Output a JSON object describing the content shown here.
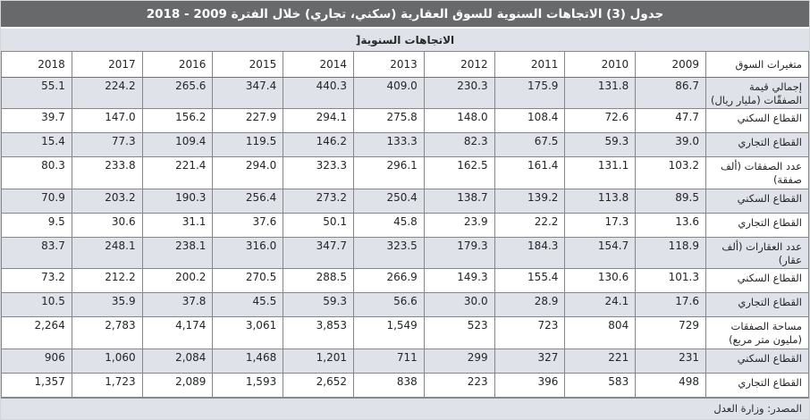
{
  "title": "جدول (3) الاتجاهات السنوية للسوق العقارية (سكني، تجاري) خلال الفترة 2009 - 2018",
  "subtitle_bracket": "]",
  "subtitle": "الاتجاهات السنوية",
  "source": "المصدر: وزارة العدل",
  "colors": {
    "title_bar_bg": "#68696b",
    "title_bar_text": "#ffffff",
    "shaded_row_bg": "#dfe3e9",
    "border": "#84878a"
  },
  "table": {
    "header": [
      "متغيرات السوق",
      "2009",
      "2010",
      "2011",
      "2012",
      "2013",
      "2014",
      "2015",
      "2016",
      "2017",
      "2018"
    ],
    "rows": [
      {
        "label": "إجمالي قيمة الصفقّات (مليار ريال)",
        "values": [
          "86.7",
          "131.8",
          "175.9",
          "230.3",
          "409.0",
          "440.3",
          "347.4",
          "265.6",
          "224.2",
          "55.1"
        ]
      },
      {
        "label": "القطاع السكني",
        "values": [
          "47.7",
          "72.6",
          "108.4",
          "148.0",
          "275.8",
          "294.1",
          "227.9",
          "156.2",
          "147.0",
          "39.7"
        ]
      },
      {
        "label": "القطاع التجاري",
        "values": [
          "39.0",
          "59.3",
          "67.5",
          "82.3",
          "133.3",
          "146.2",
          "119.5",
          "109.4",
          "77.3",
          "15.4"
        ]
      },
      {
        "label": "عدد الصفقات (ألف صفقة)",
        "values": [
          "103.2",
          "131.1",
          "161.4",
          "162.5",
          "296.1",
          "323.3",
          "294.0",
          "221.4",
          "233.8",
          "80.3"
        ]
      },
      {
        "label": "القطاع السكني",
        "values": [
          "89.5",
          "113.8",
          "139.2",
          "138.7",
          "250.4",
          "273.2",
          "256.4",
          "190.3",
          "203.2",
          "70.9"
        ]
      },
      {
        "label": "القطاع التجاري",
        "values": [
          "13.6",
          "17.3",
          "22.2",
          "23.9",
          "45.8",
          "50.1",
          "37.6",
          "31.1",
          "30.6",
          "9.5"
        ]
      },
      {
        "label": "عدد العقارات (ألف عقار)",
        "values": [
          "118.9",
          "154.7",
          "184.3",
          "179.3",
          "323.5",
          "347.7",
          "316.0",
          "238.1",
          "248.1",
          "83.7"
        ]
      },
      {
        "label": "القطاع السكني",
        "values": [
          "101.3",
          "130.6",
          "155.4",
          "149.3",
          "266.9",
          "288.5",
          "270.5",
          "200.2",
          "212.2",
          "73.2"
        ]
      },
      {
        "label": "القطاع التجاري",
        "values": [
          "17.6",
          "24.1",
          "28.9",
          "30.0",
          "56.6",
          "59.3",
          "45.5",
          "37.8",
          "35.9",
          "10.5"
        ]
      },
      {
        "label": "مساحة الصفقات (مليون متر مربع)",
        "values": [
          "729",
          "804",
          "723",
          "523",
          "1,549",
          "3,853",
          "3,061",
          "4,174",
          "2,783",
          "2,264"
        ]
      },
      {
        "label": "القطاع السكني",
        "values": [
          "231",
          "221",
          "327",
          "299",
          "711",
          "1,201",
          "1,468",
          "2,084",
          "1,060",
          "906"
        ]
      },
      {
        "label": "القطاع التجاري",
        "values": [
          "498",
          "583",
          "396",
          "223",
          "838",
          "2,652",
          "1,593",
          "2,089",
          "1,723",
          "1,357"
        ]
      }
    ]
  }
}
